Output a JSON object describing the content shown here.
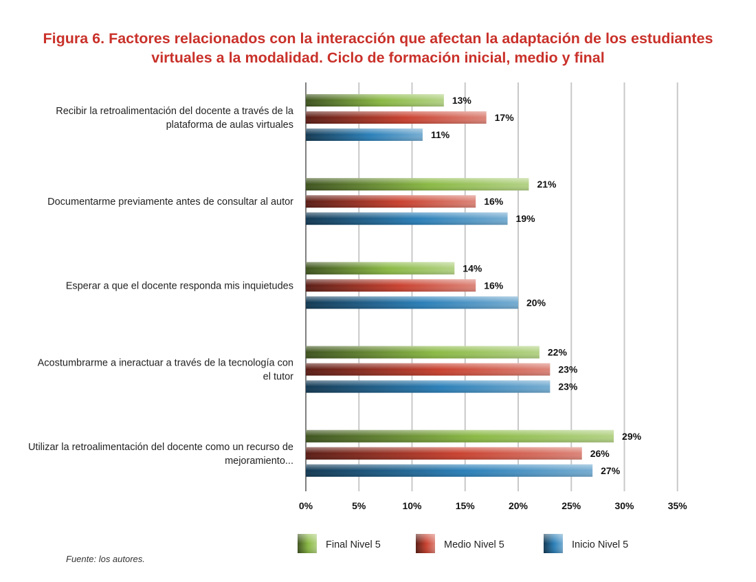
{
  "title_lines": [
    "Figura 6. Factores relacionados con la interacción que afectan la adaptación de los estudiantes",
    "virtuales a la modalidad. Ciclo de formación inicial, medio y final"
  ],
  "source": "Fuente: los autores.",
  "colors": {
    "title": "#c9312a",
    "Final Nivel 5": "#8ab944",
    "Medio Nivel 5": "#c9412f",
    "Inicio Nivel 5": "#2a7fb8"
  },
  "chart_data": {
    "type": "bar",
    "orientation": "horizontal",
    "title": "Figura 6. Factores relacionados con la interacción que afectan la adaptación de los estudiantes virtuales a la modalidad. Ciclo de formación inicial, medio y final",
    "categories": [
      [
        "Recibir la retroalimentación del docente a través de la",
        "plataforma de aulas virtuales"
      ],
      [
        "Documentarme previamente antes de consultar al autor"
      ],
      [
        "Esperar a que el docente responda mis inquietudes"
      ],
      [
        "Acostumbrarme a ineractuar a través de la tecnología con",
        "el tutor"
      ],
      [
        "Utilizar la retroalimentación del docente como un recurso de",
        "mejoramiento..."
      ]
    ],
    "series": [
      {
        "name": "Final Nivel 5",
        "values": [
          13,
          21,
          14,
          22,
          29
        ],
        "labels": [
          "13%",
          "21%",
          "14%",
          "22%",
          "29%"
        ]
      },
      {
        "name": "Medio Nivel 5",
        "values": [
          17,
          16,
          16,
          23,
          26
        ],
        "labels": [
          "17%",
          "16%",
          "16%",
          "23%",
          "26%"
        ]
      },
      {
        "name": "Inicio Nivel 5",
        "values": [
          11,
          19,
          20,
          23,
          27
        ],
        "labels": [
          "11%",
          "19%",
          "20%",
          "23%",
          "27%"
        ]
      }
    ],
    "xlim": [
      0,
      35
    ],
    "xticks": [
      0,
      5,
      10,
      15,
      20,
      25,
      30,
      35
    ],
    "xtick_labels": [
      "0%",
      "5%",
      "10%",
      "15%",
      "20%",
      "25%",
      "30%",
      "35%"
    ],
    "grid": true,
    "legend_position": "bottom"
  }
}
